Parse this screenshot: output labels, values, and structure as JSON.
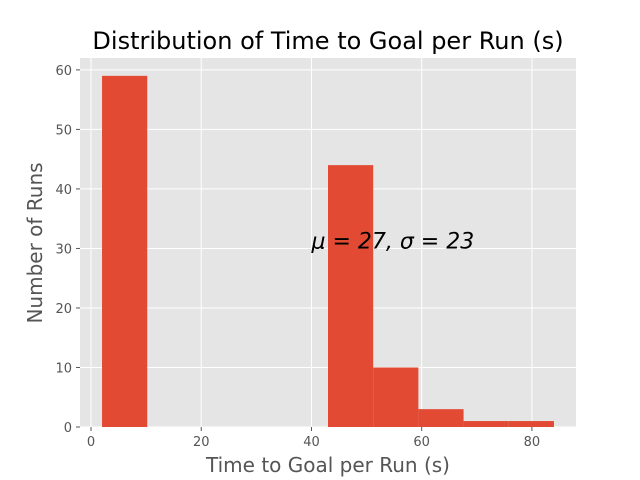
{
  "chart_data": {
    "type": "bar",
    "title": "Distribution of Time to Goal per Run (s)",
    "xlabel": "Time to Goal per Run (s)",
    "ylabel": "Number of Runs",
    "xlim": [
      -2,
      88
    ],
    "ylim": [
      0,
      62
    ],
    "xticks": [
      0,
      20,
      40,
      60,
      80
    ],
    "yticks": [
      0,
      10,
      20,
      30,
      40,
      50,
      60
    ],
    "grid": true,
    "bins": [
      {
        "start": 2.0,
        "end": 10.2,
        "count": 59
      },
      {
        "start": 10.2,
        "end": 18.4,
        "count": 0
      },
      {
        "start": 18.4,
        "end": 26.6,
        "count": 0
      },
      {
        "start": 26.6,
        "end": 34.8,
        "count": 0
      },
      {
        "start": 34.8,
        "end": 43.0,
        "count": 0
      },
      {
        "start": 43.0,
        "end": 51.2,
        "count": 44
      },
      {
        "start": 51.2,
        "end": 59.4,
        "count": 10
      },
      {
        "start": 59.4,
        "end": 67.6,
        "count": 3
      },
      {
        "start": 67.6,
        "end": 75.8,
        "count": 1
      },
      {
        "start": 75.8,
        "end": 84.0,
        "count": 1
      }
    ],
    "annotation": {
      "text": "μ = 27, σ = 23",
      "x": 40,
      "y": 30
    },
    "colors": {
      "bar": "#E24A33",
      "background": "#E5E5E5",
      "grid": "#FFFFFF"
    }
  }
}
